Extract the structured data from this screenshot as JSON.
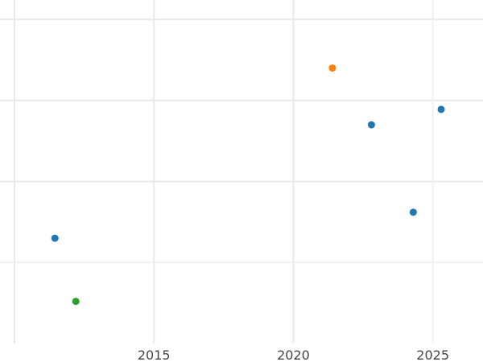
{
  "chart_data": {
    "type": "scatter",
    "title": "",
    "xlabel": "",
    "ylabel": "",
    "xlim": [
      2010,
      2026.8
    ],
    "ylim": [
      0,
      4.24
    ],
    "x_ticks": [
      "2015",
      "2020",
      "2025"
    ],
    "x_tick_values": [
      2015,
      2020,
      2025
    ],
    "y_gridlines": [
      1,
      2,
      3,
      4
    ],
    "x_gridlines": [
      2010,
      2015,
      2020,
      2025
    ],
    "grid": true,
    "y_tick_labels_shown": false,
    "points": [
      {
        "x": 2011.45,
        "y": 1.3,
        "color": "#1f77b4"
      },
      {
        "x": 2012.2,
        "y": 0.52,
        "color": "#2ca02c"
      },
      {
        "x": 2021.4,
        "y": 3.4,
        "color": "#ff7f0e"
      },
      {
        "x": 2022.8,
        "y": 2.7,
        "color": "#1f77b4"
      },
      {
        "x": 2024.3,
        "y": 1.62,
        "color": "#1f77b4"
      },
      {
        "x": 2025.3,
        "y": 2.89,
        "color": "#1f77b4"
      }
    ]
  }
}
